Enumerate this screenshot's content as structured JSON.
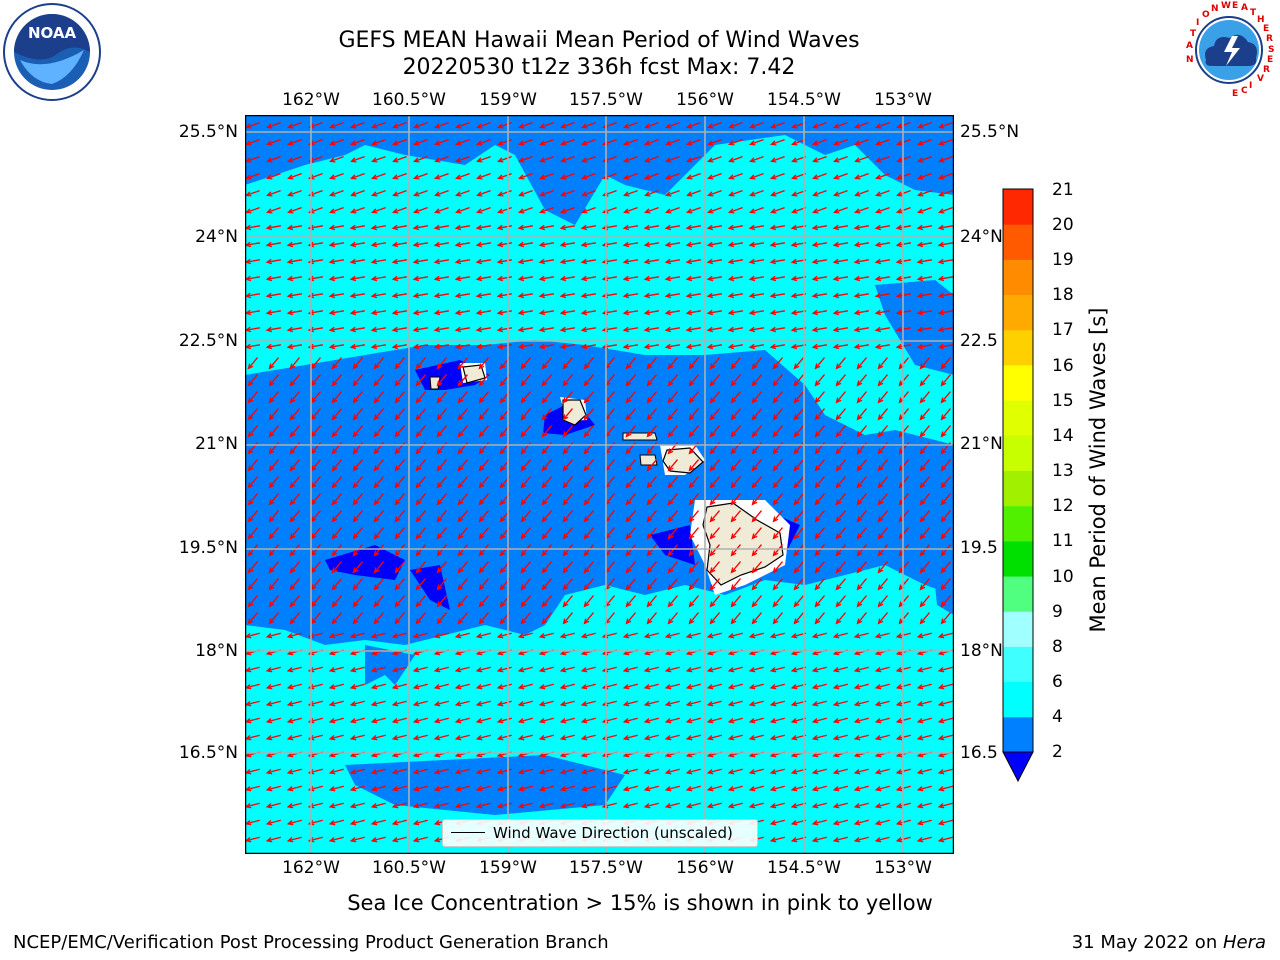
{
  "title": {
    "line1": "GEFS MEAN Hawaii Mean Period of Wind Waves",
    "line2": "20220530 t12z 336h fcst   Max: 7.42"
  },
  "map": {
    "lon_ticks": [
      "162°W",
      "160.5°W",
      "159°W",
      "157.5°W",
      "156°W",
      "154.5°W",
      "153°W"
    ],
    "lat_ticks": [
      "25.5°N",
      "24°N",
      "22.5°N",
      "21°N",
      "19.5°N",
      "18°N",
      "16.5°N"
    ],
    "right_lat_ticks": [
      "25.5°N",
      "24°N",
      "22.5",
      "21°N",
      "19.5",
      "18°N",
      "16.5"
    ],
    "legend_label": "Wind Wave Direction (unscaled)",
    "arrow_color": "#ff0000",
    "colors": {
      "ocean_light": "#00ffff",
      "ocean_mid": "#0080ff",
      "ocean_dark": "#0000ff",
      "land": "#efebd7"
    }
  },
  "colorbar": {
    "label": "Mean Period of Wind Waves [s]",
    "ticks": [
      "2",
      "4",
      "6",
      "8",
      "9",
      "10",
      "11",
      "12",
      "13",
      "14",
      "15",
      "16",
      "17",
      "18",
      "19",
      "20",
      "21"
    ],
    "colors": [
      "#0080ff",
      "#00ffff",
      "#40ffff",
      "#a0ffff",
      "#50ff80",
      "#00e000",
      "#50f000",
      "#a0f000",
      "#c8ff00",
      "#e0ff00",
      "#ffff00",
      "#ffd000",
      "#ffaa00",
      "#ff8c00",
      "#ff5a00",
      "#ff2800"
    ],
    "under_color": "#0000ff"
  },
  "caption": "Sea Ice Concentration > 15% is shown in pink to yellow",
  "footer": {
    "left": "NCEP/EMC/Verification Post Processing Product Generation Branch",
    "right_plain": "31 May 2022 on ",
    "right_italic": "Hera"
  },
  "logos": {
    "noaa_text": "NOAA",
    "nws_text": "NATIONAL WEATHER SERVICE"
  }
}
